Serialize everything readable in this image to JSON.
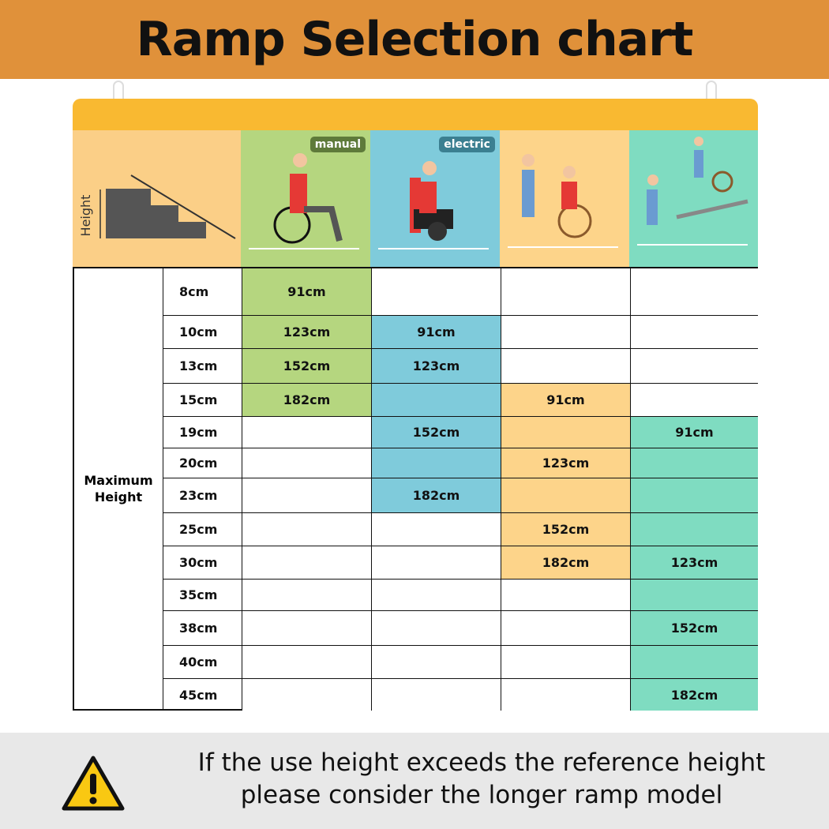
{
  "title": "Ramp Selection chart",
  "header": {
    "height_diagram_label": "Height",
    "badges": [
      "manual",
      "electric"
    ]
  },
  "colors": {
    "manual": "#B5D67F",
    "electric": "#7FCBDB",
    "assisted": "#FDD48A",
    "cargo": "#7FDCC1",
    "diagram": "#FBCF87",
    "topband": "#E0913A",
    "bar": "#F9B931"
  },
  "chart_data": {
    "type": "table",
    "row_group_label": "Maximum Height",
    "rows": [
      "8cm",
      "10cm",
      "13cm",
      "15cm",
      "19cm",
      "20cm",
      "23cm",
      "25cm",
      "30cm",
      "35cm",
      "38cm",
      "40cm",
      "45cm"
    ],
    "columns": [
      "manual wheelchair",
      "electric wheelchair",
      "assisted wheelchair",
      "wheelchair / trolley loading"
    ],
    "cells": [
      [
        "91cm",
        "",
        "",
        ""
      ],
      [
        "123cm",
        "91cm",
        "",
        ""
      ],
      [
        "152cm",
        "123cm",
        "",
        ""
      ],
      [
        "182cm",
        "",
        "91cm",
        ""
      ],
      [
        "",
        "152cm",
        "",
        "91cm"
      ],
      [
        "",
        "",
        "123cm",
        ""
      ],
      [
        "",
        "182cm",
        "",
        ""
      ],
      [
        "",
        "",
        "152cm",
        ""
      ],
      [
        "",
        "",
        "182cm",
        "123cm"
      ],
      [
        "",
        "",
        "",
        ""
      ],
      [
        "",
        "",
        "",
        "152cm"
      ],
      [
        "",
        "",
        "",
        ""
      ],
      [
        "",
        "",
        "",
        "182cm"
      ]
    ],
    "shaded_ranges": [
      [
        "8cm",
        "15cm"
      ],
      [
        "10cm",
        "23cm"
      ],
      [
        "15cm",
        "30cm"
      ],
      [
        "19cm",
        "45cm"
      ]
    ]
  },
  "footer": {
    "note_line1": "If the use height exceeds the reference height",
    "note_line2": "please consider the longer ramp model"
  }
}
